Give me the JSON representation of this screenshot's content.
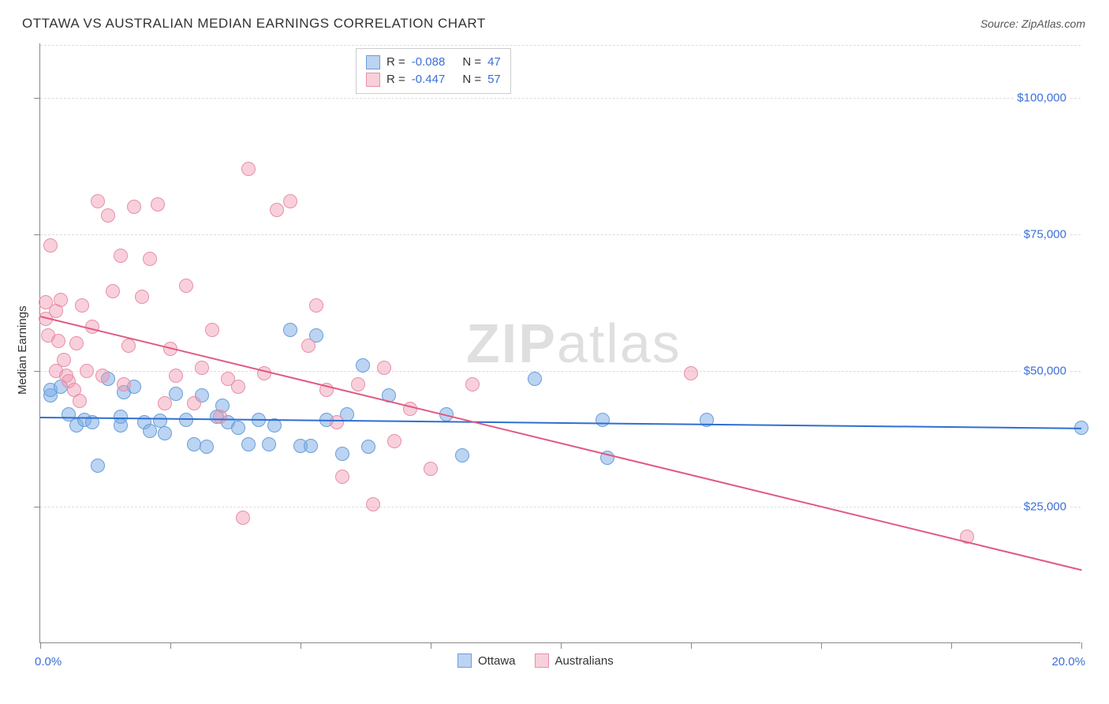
{
  "title": "OTTAWA VS AUSTRALIAN MEDIAN EARNINGS CORRELATION CHART",
  "source_label": "Source: ",
  "source_value": "ZipAtlas.com",
  "y_axis_title": "Median Earnings",
  "watermark_a": "ZIP",
  "watermark_b": "atlas",
  "chart": {
    "type": "scatter",
    "xlim": [
      0,
      20
    ],
    "ylim": [
      0,
      110000
    ],
    "x_tick_step": 2.5,
    "x_labels": {
      "min": "0.0%",
      "max": "20.0%"
    },
    "y_ticks": [
      {
        "v": 25000,
        "label": "$25,000"
      },
      {
        "v": 50000,
        "label": "$50,000"
      },
      {
        "v": 75000,
        "label": "$75,000"
      },
      {
        "v": 100000,
        "label": "$100,000"
      }
    ],
    "grid_color": "#dddddd",
    "axis_color": "#888888",
    "background_color": "#ffffff",
    "label_color": "#3b6fd8",
    "series": [
      {
        "name": "Ottawa",
        "fill": "rgba(120,170,230,0.5)",
        "stroke": "#6a9ed8",
        "trend": {
          "x0": 0,
          "y0": 41500,
          "x1": 20,
          "y1": 39500,
          "color": "#2f6fd0",
          "width": 2
        },
        "stats": {
          "R": "-0.088",
          "N": "47"
        },
        "points": [
          [
            0.2,
            45500
          ],
          [
            0.2,
            46500
          ],
          [
            0.4,
            47000
          ],
          [
            0.55,
            42000
          ],
          [
            0.7,
            40000
          ],
          [
            0.85,
            41000
          ],
          [
            1.0,
            40500
          ],
          [
            1.1,
            32500
          ],
          [
            1.3,
            48500
          ],
          [
            1.55,
            41500
          ],
          [
            1.55,
            40000
          ],
          [
            1.6,
            46000
          ],
          [
            1.8,
            47000
          ],
          [
            2.0,
            40500
          ],
          [
            2.1,
            39000
          ],
          [
            2.3,
            40800
          ],
          [
            2.4,
            38500
          ],
          [
            2.6,
            45800
          ],
          [
            2.8,
            41000
          ],
          [
            2.95,
            36500
          ],
          [
            3.1,
            45500
          ],
          [
            3.2,
            36000
          ],
          [
            3.4,
            41500
          ],
          [
            3.5,
            43500
          ],
          [
            3.6,
            40500
          ],
          [
            3.8,
            39500
          ],
          [
            4.0,
            36500
          ],
          [
            4.2,
            41000
          ],
          [
            4.4,
            36500
          ],
          [
            4.5,
            40000
          ],
          [
            4.8,
            57500
          ],
          [
            5.0,
            36200
          ],
          [
            5.2,
            36200
          ],
          [
            5.3,
            56500
          ],
          [
            5.5,
            41000
          ],
          [
            5.8,
            34800
          ],
          [
            5.9,
            42000
          ],
          [
            6.2,
            51000
          ],
          [
            6.3,
            36000
          ],
          [
            6.7,
            45500
          ],
          [
            7.8,
            42000
          ],
          [
            8.1,
            34500
          ],
          [
            9.5,
            48500
          ],
          [
            10.8,
            41000
          ],
          [
            10.9,
            34000
          ],
          [
            12.8,
            41000
          ],
          [
            20.0,
            39500
          ]
        ]
      },
      {
        "name": "Australians",
        "fill": "rgba(240,150,175,0.45)",
        "stroke": "#e690a8",
        "trend": {
          "x0": 0,
          "y0": 60000,
          "x1": 20,
          "y1": 13500,
          "color": "#e05a82",
          "width": 2
        },
        "stats": {
          "R": "-0.447",
          "N": "57"
        },
        "points": [
          [
            0.1,
            62500
          ],
          [
            0.1,
            59500
          ],
          [
            0.15,
            56500
          ],
          [
            0.2,
            73000
          ],
          [
            0.3,
            61000
          ],
          [
            0.3,
            50000
          ],
          [
            0.35,
            55500
          ],
          [
            0.4,
            63000
          ],
          [
            0.45,
            52000
          ],
          [
            0.5,
            49000
          ],
          [
            0.55,
            48000
          ],
          [
            0.65,
            46500
          ],
          [
            0.7,
            55000
          ],
          [
            0.75,
            44500
          ],
          [
            0.8,
            62000
          ],
          [
            0.9,
            50000
          ],
          [
            1.0,
            58000
          ],
          [
            1.1,
            81000
          ],
          [
            1.2,
            49000
          ],
          [
            1.3,
            78500
          ],
          [
            1.4,
            64500
          ],
          [
            1.55,
            71000
          ],
          [
            1.6,
            47500
          ],
          [
            1.7,
            54500
          ],
          [
            1.8,
            80000
          ],
          [
            1.95,
            63500
          ],
          [
            2.1,
            70500
          ],
          [
            2.25,
            80500
          ],
          [
            2.4,
            44000
          ],
          [
            2.5,
            54000
          ],
          [
            2.6,
            49000
          ],
          [
            2.8,
            65500
          ],
          [
            2.95,
            44000
          ],
          [
            3.1,
            50500
          ],
          [
            3.3,
            57500
          ],
          [
            3.45,
            41500
          ],
          [
            3.6,
            48500
          ],
          [
            3.8,
            47000
          ],
          [
            3.9,
            23000
          ],
          [
            4.0,
            87000
          ],
          [
            4.3,
            49500
          ],
          [
            4.55,
            79500
          ],
          [
            4.8,
            81000
          ],
          [
            5.15,
            54500
          ],
          [
            5.3,
            62000
          ],
          [
            5.5,
            46500
          ],
          [
            5.7,
            40500
          ],
          [
            5.8,
            30500
          ],
          [
            6.1,
            47500
          ],
          [
            6.4,
            25500
          ],
          [
            6.6,
            50500
          ],
          [
            6.8,
            37000
          ],
          [
            7.1,
            43000
          ],
          [
            7.5,
            32000
          ],
          [
            8.3,
            47500
          ],
          [
            12.5,
            49500
          ],
          [
            17.8,
            19500
          ]
        ]
      }
    ],
    "legend_bottom": [
      {
        "label": "Ottawa",
        "fill": "rgba(120,170,230,0.5)",
        "stroke": "#6a9ed8"
      },
      {
        "label": "Australians",
        "fill": "rgba(240,150,175,0.45)",
        "stroke": "#e690a8"
      }
    ]
  }
}
